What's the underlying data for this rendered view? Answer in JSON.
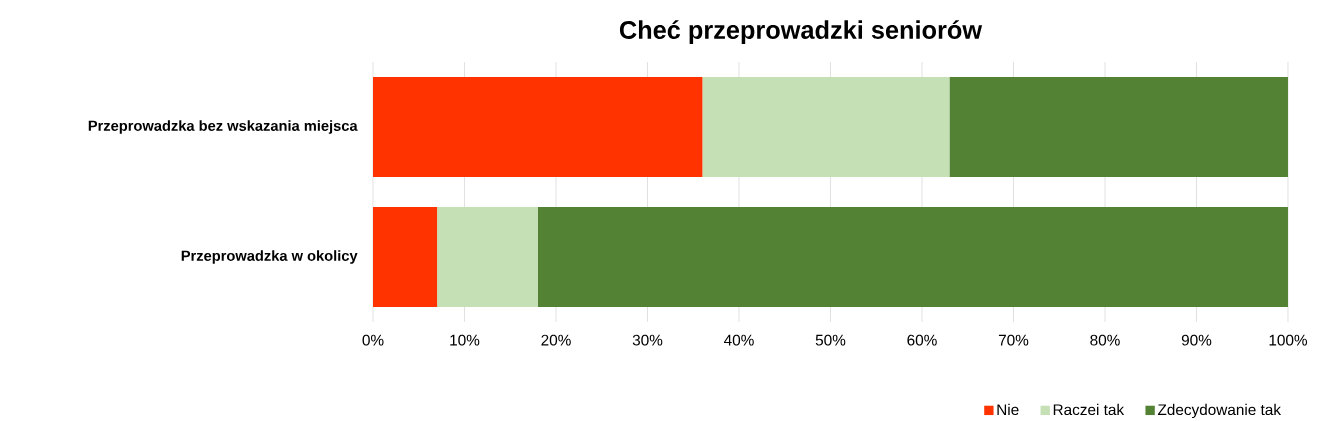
{
  "chart_data": {
    "type": "bar",
    "orientation": "horizontal",
    "stacked": true,
    "title": "Cheć przeprowadzki seniorów",
    "categories": [
      "Przeprowadzka bez wskazania miejsca",
      "Przeprowadzka w okolicy"
    ],
    "series": [
      {
        "name": "Nie",
        "color": "#ff3300",
        "values": [
          36,
          7
        ]
      },
      {
        "name": "Raczei tak",
        "color": "#c5e0b4",
        "values": [
          27,
          11
        ]
      },
      {
        "name": "Zdecydowanie tak",
        "color": "#548235",
        "values": [
          37,
          82
        ]
      }
    ],
    "xlim": [
      0,
      100
    ],
    "xticks": [
      {
        "value": 0,
        "label": "0%"
      },
      {
        "value": 10,
        "label": "10%"
      },
      {
        "value": 20,
        "label": "20%"
      },
      {
        "value": 30,
        "label": "30%"
      },
      {
        "value": 40,
        "label": "40%"
      },
      {
        "value": 50,
        "label": "50%"
      },
      {
        "value": 60,
        "label": "60%"
      },
      {
        "value": 70,
        "label": "70%"
      },
      {
        "value": 80,
        "label": "80%"
      },
      {
        "value": 90,
        "label": "90%"
      },
      {
        "value": 100,
        "label": "100%"
      }
    ],
    "grid": "x",
    "legend": "bottom right"
  }
}
